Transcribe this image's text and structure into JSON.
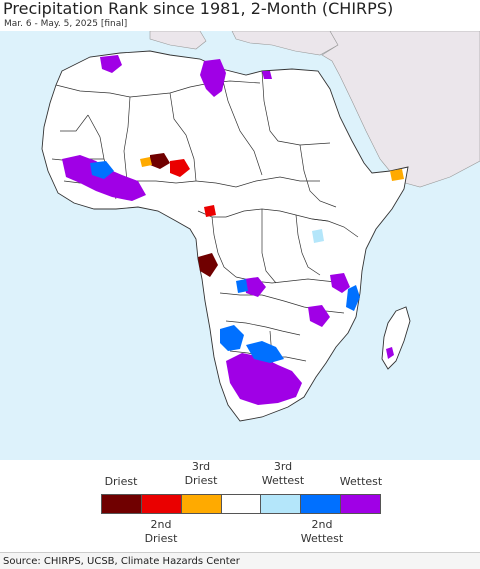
{
  "title": "Precipitation Rank since 1981, 2-Month (CHIRPS)",
  "subtitle": "Mar. 6 - May. 5, 2025 [final]",
  "colors": {
    "ocean": "#ddf2fb",
    "land": "#ffffff",
    "non_study_land": "#ebe6eb",
    "border": "#333333"
  },
  "legend": {
    "top_labels": [
      {
        "text": "Driest"
      },
      {
        "text": "3rd"
      },
      {
        "text": "Driest"
      },
      {
        "text": "3rd"
      },
      {
        "text": "Wettest"
      },
      {
        "text": "Wettest"
      }
    ],
    "bottom_labels": [
      {
        "text": "2nd"
      },
      {
        "text": "Driest"
      },
      {
        "text": "2nd"
      },
      {
        "text": "Wettest"
      }
    ],
    "classes": [
      {
        "color": "#700000"
      },
      {
        "color": "#ea0000"
      },
      {
        "color": "#ffaa00"
      },
      {
        "color": "#ffffff"
      },
      {
        "color": "#b4e6fa"
      },
      {
        "color": "#0070ff"
      },
      {
        "color": "#a000e6"
      }
    ]
  },
  "source": "Source: CHIRPS, UCSB, Climate Hazards Center"
}
